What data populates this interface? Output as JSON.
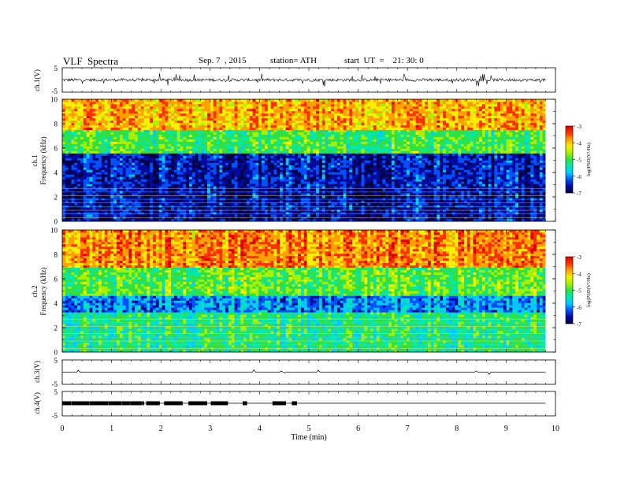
{
  "header": {
    "title": "VLF  Spectra",
    "date": "Sep. 7  , 2015",
    "station": "station= ATH",
    "start": "start  UT  =    21: 30: 0"
  },
  "colors": {
    "colormap": [
      "#000040",
      "#000a9c",
      "#0050ff",
      "#00c8ff",
      "#00e8b0",
      "#30e040",
      "#a8f000",
      "#f8f000",
      "#ffa000",
      "#ff3000",
      "#e00000",
      "#ff8080",
      "#ffffff"
    ],
    "trace": "#000000"
  },
  "chart_data": [
    {
      "type": "line",
      "id": "ch1",
      "ylabel": "ch.1(V)",
      "ylim": [
        -5,
        5
      ],
      "yticks": [
        "5",
        "-5"
      ],
      "x": [
        0,
        9.8
      ],
      "note_values": "continuous noisy waveform near 0 V with spikes up to about ±3 V"
    },
    {
      "type": "heatmap",
      "id": "ch1-spec",
      "ylabel": [
        "ch.1",
        "Frequency  (kHz)"
      ],
      "ylim": [
        0,
        10
      ],
      "yticks": [
        "0",
        "2",
        "4",
        "6",
        "8",
        "10"
      ],
      "xlim": [
        0,
        9.8
      ],
      "colorbar": {
        "label": "log(PSD(V²/Hz)",
        "range": [
          -7,
          -3
        ],
        "ticks": [
          "-3",
          "-4",
          "-5",
          "-6",
          "-7"
        ]
      },
      "bands": [
        {
          "f": [
            0,
            2.8
          ],
          "level": -6.6
        },
        {
          "f": [
            2.8,
            5.5
          ],
          "level": -6.5
        },
        {
          "f": [
            5.5,
            7.5
          ],
          "level": -5.0
        },
        {
          "f": [
            7.5,
            10
          ],
          "level": -3.9
        }
      ]
    },
    {
      "type": "heatmap",
      "id": "ch2-spec",
      "ylabel": [
        "ch.2",
        "Frequency  (kHz)"
      ],
      "ylim": [
        0,
        10
      ],
      "yticks": [
        "0",
        "2",
        "4",
        "6",
        "8",
        "10"
      ],
      "xlim": [
        0,
        9.8
      ],
      "colorbar": {
        "label": "log(PSD(V²/Hz)",
        "range": [
          -7,
          -3
        ],
        "ticks": [
          "-3",
          "-4",
          "-5",
          "-6",
          "-7"
        ]
      },
      "bands": [
        {
          "f": [
            0,
            3.2
          ],
          "level": -5.2
        },
        {
          "f": [
            3.2,
            4.6
          ],
          "level": -6.0
        },
        {
          "f": [
            4.6,
            7.0
          ],
          "level": -4.9
        },
        {
          "f": [
            7.0,
            10
          ],
          "level": -3.7
        }
      ]
    },
    {
      "type": "line",
      "id": "ch3",
      "ylabel": "ch.3(V)",
      "ylim": [
        -5,
        5
      ],
      "yticks": [
        "5",
        "-5"
      ],
      "x": [
        0,
        9.8
      ],
      "y": [
        0,
        0
      ]
    },
    {
      "type": "line",
      "id": "ch4",
      "ylabel": "ch.4(V)",
      "ylim": [
        -5,
        5
      ],
      "yticks": [
        "5",
        "-5"
      ],
      "x": [
        0,
        9.8
      ],
      "y": [
        0,
        0
      ],
      "bursts_until": 4.8
    }
  ],
  "xaxis": {
    "label": "Time  (min)",
    "range": [
      0,
      10
    ],
    "ticks": [
      "0",
      "1",
      "2",
      "3",
      "4",
      "5",
      "6",
      "7",
      "8",
      "9",
      "10"
    ]
  }
}
